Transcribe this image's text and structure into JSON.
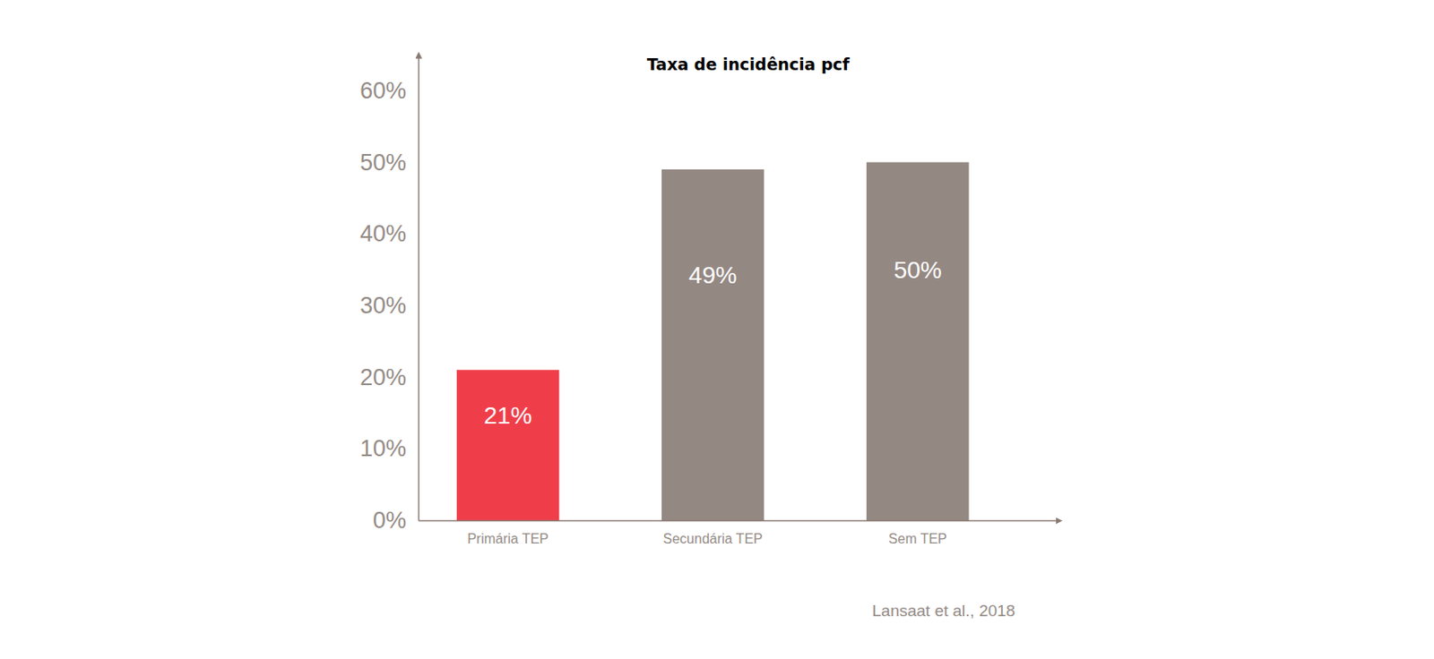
{
  "chart_data": {
    "type": "bar",
    "title": "Taxa de incidência pcf",
    "categories": [
      "Primária TEP",
      "Secundária TEP",
      "Sem TEP"
    ],
    "values": [
      21,
      49,
      50
    ],
    "value_labels": [
      "21%",
      "49%",
      "50%"
    ],
    "data_labels": true,
    "colors": [
      "#ef3e4a",
      "#948883",
      "#948883"
    ],
    "ylim": [
      0,
      65
    ],
    "yticks": [
      {
        "value": 0,
        "label": "0%"
      },
      {
        "value": 10,
        "label": "10%"
      },
      {
        "value": 20,
        "label": "20%"
      },
      {
        "value": 30,
        "label": "30%"
      },
      {
        "value": 40,
        "label": "40%"
      },
      {
        "value": 50,
        "label": "50%"
      },
      {
        "value": 60,
        "label": "60%"
      }
    ],
    "grid": false,
    "annotations": [
      "Lansaat et al., 2018"
    ]
  }
}
